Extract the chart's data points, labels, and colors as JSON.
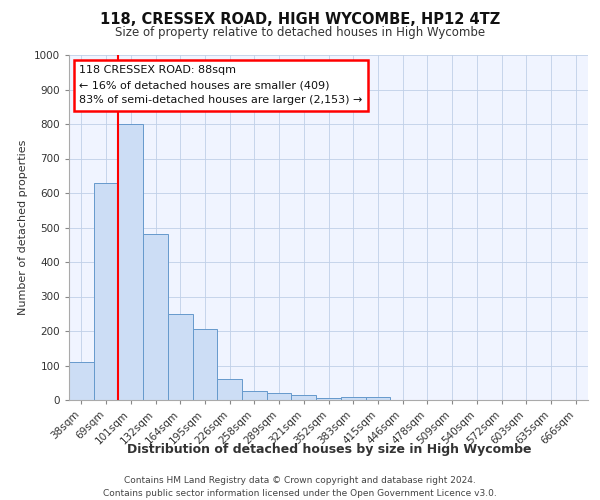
{
  "title": "118, CRESSEX ROAD, HIGH WYCOMBE, HP12 4TZ",
  "subtitle": "Size of property relative to detached houses in High Wycombe",
  "xlabel": "Distribution of detached houses by size in High Wycombe",
  "ylabel": "Number of detached properties",
  "categories": [
    "38sqm",
    "69sqm",
    "101sqm",
    "132sqm",
    "164sqm",
    "195sqm",
    "226sqm",
    "258sqm",
    "289sqm",
    "321sqm",
    "352sqm",
    "383sqm",
    "415sqm",
    "446sqm",
    "478sqm",
    "509sqm",
    "540sqm",
    "572sqm",
    "603sqm",
    "635sqm",
    "666sqm"
  ],
  "values": [
    110,
    630,
    800,
    480,
    250,
    205,
    60,
    27,
    20,
    15,
    5,
    10,
    10,
    0,
    0,
    0,
    0,
    0,
    0,
    0,
    0
  ],
  "bar_color": "#ccddf5",
  "bar_edge_color": "#6699cc",
  "red_line_index": 2,
  "annotation_lines": [
    "118 CRESSEX ROAD: 88sqm",
    "← 16% of detached houses are smaller (409)",
    "83% of semi-detached houses are larger (2,153) →"
  ],
  "ylim": [
    0,
    1000
  ],
  "yticks": [
    0,
    100,
    200,
    300,
    400,
    500,
    600,
    700,
    800,
    900,
    1000
  ],
  "footer_lines": [
    "Contains HM Land Registry data © Crown copyright and database right 2024.",
    "Contains public sector information licensed under the Open Government Licence v3.0."
  ],
  "background_color": "#f0f4ff",
  "grid_color": "#c0d0e8",
  "title_fontsize": 10.5,
  "subtitle_fontsize": 8.5,
  "xlabel_fontsize": 9,
  "ylabel_fontsize": 8,
  "tick_fontsize": 7.5,
  "annotation_fontsize": 8,
  "footer_fontsize": 6.5
}
